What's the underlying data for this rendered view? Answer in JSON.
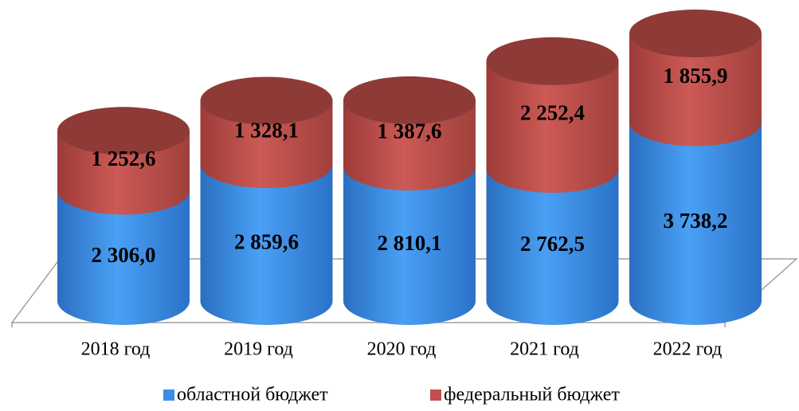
{
  "chart_data": {
    "type": "bar",
    "stacked": true,
    "categories": [
      "2018 год",
      "2019 год",
      "2020 год",
      "2021 год",
      "2022 год"
    ],
    "series": [
      {
        "name": "областной бюджет",
        "color": "#3a8ee6",
        "values": [
          2306.0,
          2859.6,
          2810.1,
          2762.5,
          3738.2
        ],
        "value_labels": [
          "2 306,0",
          "2 859,6",
          "2 810,1",
          "2 762,5",
          "3 738,2"
        ]
      },
      {
        "name": "федеральный бюджет",
        "color": "#c0504d",
        "values": [
          1252.6,
          1328.1,
          1387.6,
          2252.4,
          1855.9
        ],
        "value_labels": [
          "1 252,6",
          "1 328,1",
          "1 387,6",
          "2 252,4",
          "1 855,9"
        ]
      }
    ]
  }
}
